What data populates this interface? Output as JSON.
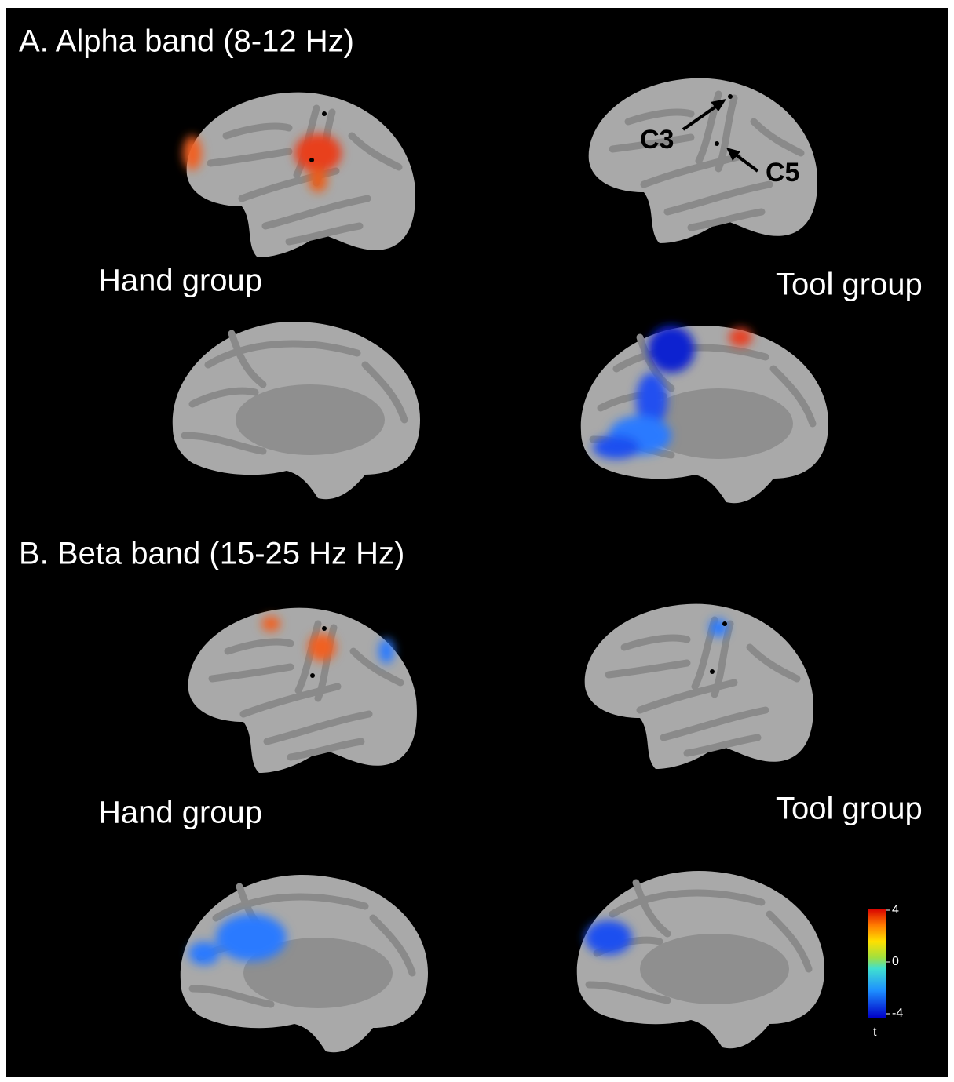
{
  "panels": [
    {
      "title": "A. Alpha band (8-12 Hz)",
      "left_label": "Hand group",
      "right_label": "Tool group",
      "electrodes": [
        "C3",
        "C5"
      ]
    },
    {
      "title": "B. Beta band (15-25 Hz Hz)",
      "left_label": "Hand group",
      "right_label": "Tool group"
    }
  ],
  "colorbar": {
    "label": "t",
    "lim": [
      -4,
      4
    ],
    "ticks": [
      4,
      0,
      -4
    ]
  }
}
